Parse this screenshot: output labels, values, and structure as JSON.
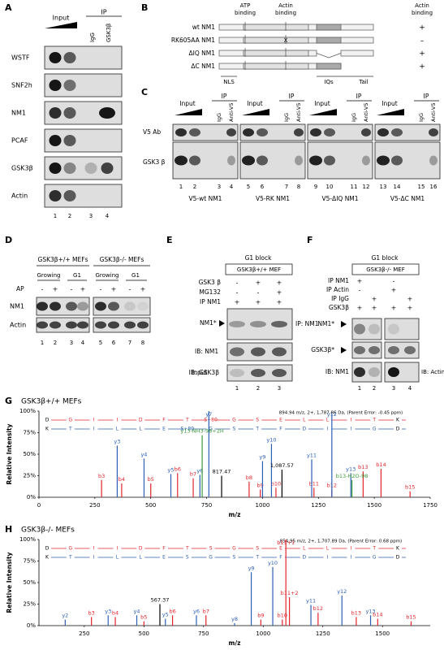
{
  "A": {
    "label": "A",
    "input": "Input",
    "ip": "IP",
    "ip_lanes": [
      "IgG",
      "GSK3β"
    ],
    "rows": [
      "WSTF",
      "SNF2h",
      "NM1",
      "PCAF",
      "GSK3β",
      "Actin"
    ],
    "lanes": [
      "1",
      "2",
      "3",
      "4"
    ]
  },
  "B": {
    "label": "B",
    "atp_binding": [
      "ATP",
      "binding"
    ],
    "actin_binding": [
      "Actin",
      "binding"
    ],
    "actin_binding_col": [
      "Actin",
      "binding"
    ],
    "constructs": [
      {
        "name": "wt NM1",
        "actin_binding": "+"
      },
      {
        "name": "RK605AA NM1",
        "actin_binding": "–"
      },
      {
        "name": "ΔIQ NM1",
        "actin_binding": "+"
      },
      {
        "name": "ΔC NM1",
        "actin_binding": "+"
      }
    ],
    "mutation": "X",
    "domains": [
      "NLS",
      "IQs",
      "Tail"
    ]
  },
  "C": {
    "label": "C",
    "rows": [
      "V5 Ab",
      "GSK3 β"
    ],
    "groups": [
      {
        "input": "Input",
        "ip": "IP",
        "ip_lanes": [
          "IgG",
          "Anti-V5"
        ],
        "lanes": [
          "1",
          "2",
          "3",
          "4"
        ],
        "name": "V5-wt NM1"
      },
      {
        "input": "Input",
        "ip": "IP",
        "ip_lanes": [
          "IgG",
          "Anti-V5"
        ],
        "lanes": [
          "5",
          "6",
          "7",
          "8"
        ],
        "name": "V5-RK NM1"
      },
      {
        "input": "Input",
        "ip": "IP",
        "ip_lanes": [
          "IgG",
          "Anti-V5"
        ],
        "lanes": [
          "9",
          "10",
          "11",
          "12"
        ],
        "name": "V5-ΔIQ NM1"
      },
      {
        "input": "Input",
        "ip": "IP",
        "ip_lanes": [
          "IgG",
          "Anti-V5"
        ],
        "lanes": [
          "13",
          "14",
          "15",
          "16"
        ],
        "name": "V5-ΔC NM1"
      }
    ]
  },
  "D": {
    "label": "D",
    "groups": [
      {
        "title": "GSK3β+/+ MEFs",
        "conditions": [
          "Growing",
          "G1"
        ]
      },
      {
        "title": "GSK3β-/- MEFs",
        "conditions": [
          "Growing",
          "G1"
        ]
      }
    ],
    "ap": "AP",
    "ap_signs": [
      "-",
      "+",
      "-",
      "+",
      "-",
      "+",
      "-",
      "+"
    ],
    "rows": [
      "NM1",
      "Actin"
    ],
    "lanes": [
      "1",
      "2",
      "3",
      "4",
      "5",
      "6",
      "7",
      "8"
    ]
  },
  "E": {
    "label": "E",
    "block": "G1 block",
    "cell": "GSK3β+/+ MEF",
    "conditions": [
      {
        "name": "GSK3 β",
        "signs": [
          "-",
          "+",
          "+"
        ]
      },
      {
        "name": "MG132",
        "signs": [
          "-",
          "-",
          "+"
        ]
      },
      {
        "name": "IP NM1",
        "signs": [
          "+",
          "+",
          "+"
        ]
      }
    ],
    "band": "NM1*",
    "blots": [
      "IP: NM1",
      "IB: NM1",
      "Input",
      "IB: GSK3β"
    ],
    "lanes": [
      "1",
      "2",
      "3"
    ]
  },
  "F": {
    "label": "F",
    "block": "G1 block",
    "cell": "GSK3β-/- MEF",
    "conditions": [
      {
        "name": "IP NM1",
        "signs": [
          "+",
          null,
          "-",
          null
        ]
      },
      {
        "name": "IP Actin",
        "signs": [
          "-",
          null,
          "+",
          null
        ]
      },
      {
        "name": "IP IgG",
        "signs": [
          null,
          "+",
          null,
          "+"
        ]
      },
      {
        "name": "GSK3β",
        "signs": [
          "+",
          "+",
          "+",
          "+"
        ]
      }
    ],
    "bands": [
      "NM1*",
      "GSK3β*"
    ],
    "blots": [
      "IB: NM1",
      "IB: Actin"
    ],
    "lanes": [
      "1",
      "2",
      "3",
      "4"
    ]
  },
  "G": {
    "label": "G",
    "title": "GSK3β+/+ MEFs",
    "header": "894.94 m/z, 2+, 1,787.86 Da, (Parent Error: -0.45 ppm)",
    "b_sequence": [
      "D",
      "G",
      "I",
      "I",
      "D",
      "F",
      "T",
      "S+80",
      "G",
      "S",
      "E",
      "L",
      "L",
      "I",
      "T",
      "K"
    ],
    "y_sequence": [
      "K",
      "T",
      "I",
      "L",
      "L",
      "E",
      "S+80",
      "G",
      "S",
      "T",
      "F",
      "D",
      "I",
      "I",
      "G",
      "D"
    ],
    "xlabel": "m/z",
    "ylabel": "Relative Intensity",
    "xlim": [
      0,
      1750
    ],
    "ylim": [
      0,
      100
    ],
    "xticks": [
      0,
      250,
      500,
      750,
      1000,
      1250,
      1500,
      1750
    ],
    "yticks": [
      {
        "value": 0,
        "label": "0%"
      },
      {
        "value": 25,
        "label": "25%"
      },
      {
        "value": 50,
        "label": "50%"
      },
      {
        "value": 75,
        "label": "75%"
      },
      {
        "value": 100,
        "label": "100%"
      }
    ],
    "ions": [
      {
        "color": "#e3242b",
        "peaks": [
          {
            "label": "b3",
            "mz": 280,
            "intensity": 20
          },
          {
            "label": "b4",
            "mz": 370,
            "intensity": 16
          },
          {
            "label": "b5",
            "mz": 500,
            "intensity": 16
          },
          {
            "label": "b6",
            "mz": 620,
            "intensity": 28
          },
          {
            "label": "b7",
            "mz": 690,
            "intensity": 22
          },
          {
            "label": "b8",
            "mz": 940,
            "intensity": 18
          },
          {
            "label": "b9",
            "mz": 990,
            "intensity": 9
          },
          {
            "label": "b10",
            "mz": 1060,
            "intensity": 11
          },
          {
            "label": "b11",
            "mz": 1230,
            "intensity": 11
          },
          {
            "label": "b12",
            "mz": 1310,
            "intensity": 9
          },
          {
            "label": "b13",
            "mz": 1450,
            "intensity": 30
          },
          {
            "label": "b14",
            "mz": 1530,
            "intensity": 33
          },
          {
            "label": "b15",
            "mz": 1660,
            "intensity": 7
          }
        ]
      },
      {
        "color": "#2b5fb4",
        "peaks": [
          {
            "label": "y3",
            "mz": 350,
            "intensity": 60
          },
          {
            "label": "y4",
            "mz": 470,
            "intensity": 45
          },
          {
            "label": "y5",
            "mz": 590,
            "intensity": 27
          },
          {
            "label": "y6",
            "mz": 720,
            "intensity": 26
          },
          {
            "label": "y7",
            "mz": 760,
            "intensity": 100
          },
          {
            "label": "y9",
            "mz": 1000,
            "intensity": 42
          },
          {
            "label": "y10",
            "mz": 1040,
            "intensity": 62
          },
          {
            "label": "y11",
            "mz": 1220,
            "intensity": 44
          },
          {
            "label": "y12",
            "mz": 1310,
            "intensity": 96
          },
          {
            "label": "y13",
            "mz": 1395,
            "intensity": 28
          }
        ]
      },
      {
        "color": "#3a9a3a",
        "peaks": [
          {
            "label": "y13-NH3-98+2H",
            "mz": 730,
            "intensity": 72
          },
          {
            "label": "b13-H2O-98",
            "mz": 1400,
            "intensity": 20
          }
        ]
      },
      {
        "color": "#000000",
        "peaks": [
          {
            "label": "817.47",
            "mz": 817,
            "intensity": 25
          },
          {
            "label": "1,087.57",
            "mz": 1087,
            "intensity": 32
          }
        ]
      }
    ]
  },
  "H": {
    "label": "H",
    "title": "GSK3β-/- MEFs",
    "header": "854.95 m/z, 2+, 1,707.89 Da, (Parent Error: 0.68 ppm)",
    "b_sequence": [
      "D",
      "G",
      "I",
      "I",
      "D",
      "F",
      "T",
      "S",
      "G",
      "S",
      "E",
      "L",
      "L",
      "I",
      "T",
      "K"
    ],
    "y_sequence": [
      "K",
      "T",
      "I",
      "L",
      "L",
      "E",
      "S",
      "G",
      "S",
      "T",
      "F",
      "D",
      "I",
      "I",
      "G",
      "D"
    ],
    "xlabel": "m/z",
    "ylabel": "Relative Intensity",
    "xlim": [
      60,
      1700
    ],
    "ylim": [
      0,
      100
    ],
    "xticks": [
      250,
      500,
      750,
      1000,
      1250,
      1500
    ],
    "yticks": [
      {
        "value": 0,
        "label": "0%"
      },
      {
        "value": 25,
        "label": "25%"
      },
      {
        "value": 50,
        "label": "50%"
      },
      {
        "value": 75,
        "label": "75%"
      },
      {
        "value": 100,
        "label": "100%"
      }
    ],
    "ions": [
      {
        "color": "#e3242b",
        "peaks": [
          {
            "label": "b3",
            "mz": 280,
            "intensity": 10
          },
          {
            "label": "b4",
            "mz": 380,
            "intensity": 10
          },
          {
            "label": "b5",
            "mz": 500,
            "intensity": 5
          },
          {
            "label": "b6",
            "mz": 620,
            "intensity": 12
          },
          {
            "label": "b7",
            "mz": 760,
            "intensity": 12
          },
          {
            "label": "b9",
            "mz": 990,
            "intensity": 7
          },
          {
            "label": "b10",
            "mz": 1080,
            "intensity": 7
          },
          {
            "label": "b11+1",
            "mz": 1095,
            "intensity": 100
          },
          {
            "label": "b11+2",
            "mz": 1110,
            "intensity": 33
          },
          {
            "label": "b12",
            "mz": 1230,
            "intensity": 15
          },
          {
            "label": "b13",
            "mz": 1390,
            "intensity": 10
          },
          {
            "label": "b14",
            "mz": 1480,
            "intensity": 8
          },
          {
            "label": "b15",
            "mz": 1620,
            "intensity": 5
          }
        ]
      },
      {
        "color": "#2b5fb4",
        "peaks": [
          {
            "label": "y2",
            "mz": 170,
            "intensity": 7
          },
          {
            "label": "y3",
            "mz": 350,
            "intensity": 12
          },
          {
            "label": "y4",
            "mz": 470,
            "intensity": 12
          },
          {
            "label": "y5",
            "mz": 590,
            "intensity": 8
          },
          {
            "label": "y6",
            "mz": 720,
            "intensity": 12
          },
          {
            "label": "y8",
            "mz": 880,
            "intensity": 3
          },
          {
            "label": "y9",
            "mz": 950,
            "intensity": 62
          },
          {
            "label": "y10",
            "mz": 1040,
            "intensity": 68
          },
          {
            "label": "y11",
            "mz": 1200,
            "intensity": 24
          },
          {
            "label": "y12",
            "mz": 1330,
            "intensity": 35
          },
          {
            "label": "y13",
            "mz": 1450,
            "intensity": 12
          }
        ]
      },
      {
        "color": "#000000",
        "peaks": [
          {
            "label": "567.37",
            "mz": 567,
            "intensity": 25
          }
        ]
      }
    ]
  }
}
